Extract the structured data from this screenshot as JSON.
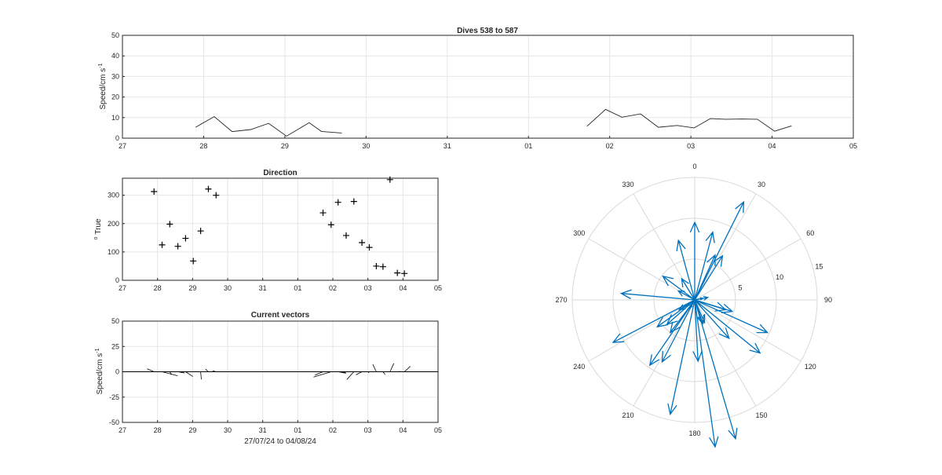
{
  "chart_data": [
    {
      "id": "speed",
      "type": "line",
      "title": "Dives 538 to 587",
      "ylabel": "Speed/cm s",
      "ylabel_sup": "-1",
      "xlabel": "",
      "x_ticklabels": [
        "27",
        "28",
        "29",
        "30",
        "31",
        "01",
        "02",
        "03",
        "04",
        "05"
      ],
      "y_ticks": [
        0,
        10,
        20,
        30,
        40,
        50
      ],
      "ylim": [
        0,
        50
      ],
      "xlim": [
        0,
        9
      ],
      "grid": true,
      "series": [
        {
          "x": [
            0.9,
            1.13,
            1.35,
            1.58,
            1.8,
            2.02,
            2.3,
            2.45,
            2.7
          ],
          "y": [
            5.3,
            10.5,
            3.2,
            4.2,
            7.2,
            1.0,
            7.5,
            3.3,
            2.5
          ]
        },
        {
          "x": [
            5.72,
            5.95,
            6.15,
            6.38,
            6.6,
            6.83,
            7.04,
            7.24,
            7.43,
            7.63,
            7.82,
            8.03,
            8.24
          ],
          "y": [
            5.8,
            14.0,
            10.2,
            11.8,
            5.3,
            6.2,
            5.0,
            9.5,
            9.2,
            9.3,
            9.2,
            3.4,
            6.0
          ]
        }
      ]
    },
    {
      "id": "direction",
      "type": "scatter",
      "title": "Direction",
      "ylabel": "True",
      "ylabel_sup": "o",
      "x_ticklabels": [
        "27",
        "28",
        "29",
        "30",
        "31",
        "01",
        "02",
        "03",
        "04",
        "05"
      ],
      "y_ticks": [
        0,
        100,
        200,
        300
      ],
      "ylim": [
        0,
        360
      ],
      "xlim": [
        0,
        9
      ],
      "grid": true,
      "marker": "+",
      "points": [
        [
          0.9,
          313
        ],
        [
          1.13,
          125
        ],
        [
          1.35,
          198
        ],
        [
          1.58,
          120
        ],
        [
          1.8,
          148
        ],
        [
          2.02,
          68
        ],
        [
          2.23,
          174
        ],
        [
          2.45,
          322
        ],
        [
          2.67,
          300
        ],
        [
          5.72,
          238
        ],
        [
          5.95,
          196
        ],
        [
          6.15,
          275
        ],
        [
          6.38,
          158
        ],
        [
          6.6,
          278
        ],
        [
          6.83,
          133
        ],
        [
          7.04,
          116
        ],
        [
          7.24,
          50
        ],
        [
          7.43,
          48
        ],
        [
          7.63,
          355
        ],
        [
          7.84,
          26
        ],
        [
          8.04,
          24
        ]
      ]
    },
    {
      "id": "vectors",
      "type": "line",
      "title": "Current vectors",
      "ylabel": "Speed/cm s",
      "ylabel_sup": "-1",
      "xlabel": "27/07/24 to 04/08/24",
      "x_ticklabels": [
        "27",
        "28",
        "29",
        "30",
        "31",
        "01",
        "02",
        "03",
        "04",
        "05"
      ],
      "y_ticks": [
        50,
        25,
        0,
        -25,
        -50
      ],
      "ylim": [
        -50,
        50
      ],
      "xlim": [
        0,
        9
      ],
      "grid": true,
      "sticks": [
        {
          "x": 0.9,
          "u": -3.9,
          "v": 2.9
        },
        {
          "x": 1.13,
          "u": 8.9,
          "v": -4.0
        },
        {
          "x": 1.35,
          "u": 1.0,
          "v": -2.9
        },
        {
          "x": 1.58,
          "u": 3.8,
          "v": -1.2
        },
        {
          "x": 1.8,
          "u": 4.2,
          "v": -4.7
        },
        {
          "x": 2.02,
          "u": 1.0,
          "v": 0.2
        },
        {
          "x": 2.23,
          "u": 0.4,
          "v": -7.5
        },
        {
          "x": 2.45,
          "u": -1.6,
          "v": 2.6
        },
        {
          "x": 2.67,
          "u": -2.0,
          "v": 1.1
        },
        {
          "x": 5.72,
          "u": -4.6,
          "v": -3.3
        },
        {
          "x": 5.95,
          "u": -10.0,
          "v": -5.2
        },
        {
          "x": 6.15,
          "u": 4.6,
          "v": -1.4
        },
        {
          "x": 6.38,
          "u": -1.9,
          "v": -1.2
        },
        {
          "x": 6.6,
          "u": -4.0,
          "v": -7.6
        },
        {
          "x": 6.83,
          "u": -3.4,
          "v": -3.0
        },
        {
          "x": 7.04,
          "u": -0.6,
          "v": -1.0
        },
        {
          "x": 7.24,
          "u": -2.0,
          "v": 7.3
        },
        {
          "x": 7.43,
          "u": 1.2,
          "v": -2.8
        },
        {
          "x": 7.63,
          "u": 2.2,
          "v": 8.3
        },
        {
          "x": 7.84,
          "u": 1.6,
          "v": 0.3
        },
        {
          "x": 8.04,
          "u": 3.4,
          "v": 5.4
        }
      ]
    },
    {
      "id": "polar",
      "type": "compass",
      "title": "",
      "angle_labels": [
        "0",
        "30",
        "60",
        "90",
        "120",
        "150",
        "180",
        "210",
        "240",
        "270",
        "300",
        "330"
      ],
      "radius_labels": [
        "5",
        "10",
        "15"
      ],
      "rmax": 15,
      "color": "#0072bd",
      "vectors": [
        [
          -3.9,
          2.9
        ],
        [
          8.9,
          -4.0
        ],
        [
          1.0,
          -2.9
        ],
        [
          3.8,
          -1.2
        ],
        [
          4.2,
          -4.7
        ],
        [
          1.0,
          0.2
        ],
        [
          0.4,
          -7.5
        ],
        [
          -1.6,
          2.6
        ],
        [
          -2.0,
          1.1
        ],
        [
          -4.6,
          -3.3
        ],
        [
          -10.0,
          -5.2
        ],
        [
          4.6,
          -1.4
        ],
        [
          -1.9,
          -1.2
        ],
        [
          -4.0,
          -7.6
        ],
        [
          -3.4,
          -3.0
        ],
        [
          -0.6,
          -1.0
        ],
        [
          -2.0,
          7.3
        ],
        [
          1.2,
          -2.8
        ],
        [
          2.2,
          8.3
        ],
        [
          1.6,
          0.3
        ],
        [
          3.4,
          5.4
        ],
        [
          0.0,
          9.5
        ],
        [
          2.5,
          5.5
        ],
        [
          -3.0,
          -4.0
        ],
        [
          8.0,
          -6.5
        ],
        [
          6.0,
          12.0
        ],
        [
          -9.0,
          0.8
        ],
        [
          -5.5,
          -8.0
        ],
        [
          -3.0,
          -14.0
        ],
        [
          5.0,
          -17.0
        ],
        [
          2.5,
          -18.0
        ]
      ]
    }
  ]
}
